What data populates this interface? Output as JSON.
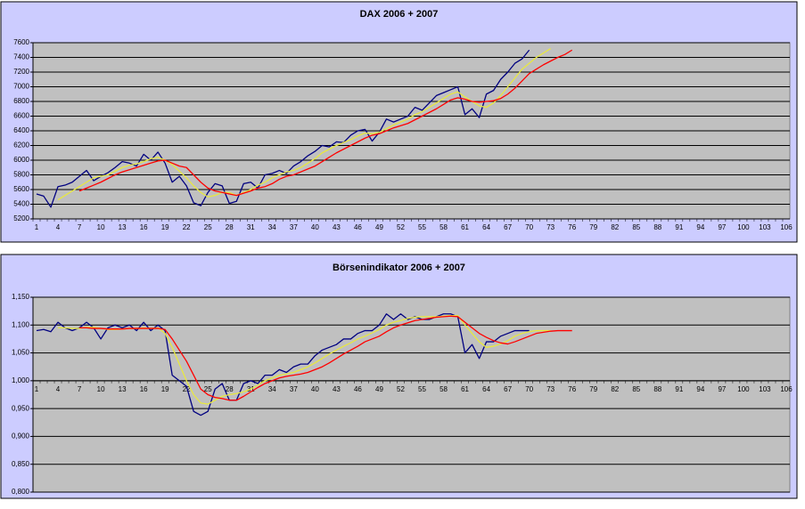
{
  "chart_data": [
    {
      "type": "line",
      "title": "DAX 2006 + 2007",
      "categories": [
        1,
        null,
        null,
        4,
        null,
        null,
        7,
        null,
        null,
        10,
        null,
        null,
        13,
        null,
        null,
        16,
        null,
        null,
        19,
        null,
        null,
        22,
        null,
        null,
        25,
        null,
        null,
        28,
        null,
        null,
        31,
        null,
        null,
        34,
        null,
        null,
        37,
        null,
        null,
        40,
        null,
        null,
        43,
        null,
        null,
        46,
        null,
        null,
        49,
        null,
        null,
        52,
        null,
        null,
        55,
        null,
        null,
        58,
        null,
        null,
        61,
        null,
        null,
        64,
        null,
        null,
        67,
        null,
        null,
        70,
        null,
        null,
        73,
        null,
        null,
        76,
        null,
        null,
        79,
        null,
        null,
        82,
        null,
        null,
        85,
        null,
        null,
        88,
        null,
        null,
        91,
        null,
        null,
        94,
        null,
        null,
        97,
        null,
        null,
        100,
        null,
        null,
        103,
        null,
        null,
        106
      ],
      "ylim": [
        5200,
        7600
      ],
      "yticks": [
        5200,
        5400,
        5600,
        5800,
        6000,
        6200,
        6400,
        6600,
        6800,
        7000,
        7200,
        7400,
        7600
      ],
      "grid": true,
      "series": [
        {
          "color": "#000080",
          "values": [
            5540,
            5510,
            5360,
            5640,
            5660,
            5700,
            5780,
            5860,
            5720,
            5780,
            5830,
            5900,
            5980,
            5960,
            5920,
            6080,
            6000,
            6110,
            5960,
            5700,
            5780,
            5650,
            5420,
            5380,
            5560,
            5680,
            5650,
            5410,
            5440,
            5680,
            5700,
            5620,
            5800,
            5820,
            5860,
            5820,
            5920,
            5980,
            6060,
            6120,
            6200,
            6180,
            6250,
            6240,
            6340,
            6400,
            6420,
            6260,
            6380,
            6560,
            6520,
            6560,
            6600,
            6720,
            6680,
            6780,
            6880,
            6920,
            6960,
            7000,
            6620,
            6700,
            6580,
            6900,
            6950,
            7100,
            7200,
            7320,
            7380,
            7500,
            null,
            null,
            null,
            null,
            null,
            null,
            null,
            null,
            null,
            null,
            null,
            null,
            null,
            null,
            null,
            null,
            null,
            null,
            null,
            null,
            null,
            null,
            null,
            null,
            null,
            null,
            null,
            null,
            null,
            null,
            null,
            null,
            null,
            null,
            null,
            null
          ]
        },
        {
          "color": "#e8e840",
          "values": [
            null,
            null,
            null,
            5460,
            5520,
            5580,
            5640,
            5700,
            5760,
            5780,
            5800,
            5850,
            5900,
            5930,
            5950,
            5980,
            6020,
            6040,
            6000,
            5940,
            5850,
            5760,
            5650,
            5560,
            5500,
            5520,
            5560,
            5560,
            5520,
            5560,
            5600,
            5660,
            5700,
            5760,
            5800,
            5840,
            5860,
            5900,
            5960,
            6020,
            6100,
            6150,
            6200,
            6240,
            6280,
            6330,
            6370,
            6360,
            6380,
            6430,
            6480,
            6520,
            6560,
            6620,
            6660,
            6720,
            6780,
            6840,
            6900,
            6930,
            6860,
            6800,
            6740,
            6720,
            6780,
            6880,
            7000,
            7120,
            7240,
            7320,
            7400,
            7460,
            7520,
            null,
            null,
            null,
            null,
            null,
            null,
            null,
            null,
            null,
            null,
            null,
            null,
            null,
            null,
            null,
            null,
            null,
            null,
            null,
            null,
            null,
            null,
            null,
            null,
            null,
            null,
            null,
            null,
            null,
            null,
            null,
            null,
            null
          ]
        },
        {
          "color": "#ff0000",
          "values": [
            null,
            null,
            null,
            null,
            null,
            null,
            5580,
            5620,
            5660,
            5700,
            5750,
            5800,
            5840,
            5870,
            5900,
            5930,
            5960,
            5990,
            6000,
            5960,
            5920,
            5900,
            5800,
            5700,
            5620,
            5580,
            5560,
            5540,
            5520,
            5550,
            5580,
            5620,
            5640,
            5680,
            5740,
            5780,
            5800,
            5840,
            5880,
            5920,
            5980,
            6040,
            6100,
            6150,
            6200,
            6250,
            6300,
            6340,
            6360,
            6400,
            6440,
            6470,
            6500,
            6550,
            6600,
            6650,
            6700,
            6760,
            6820,
            6850,
            6830,
            6800,
            6790,
            6800,
            6810,
            6840,
            6900,
            6980,
            7080,
            7180,
            7240,
            7300,
            7350,
            7400,
            7440,
            7500,
            null,
            null,
            null,
            null,
            null,
            null,
            null,
            null,
            null,
            null,
            null,
            null,
            null,
            null,
            null,
            null,
            null,
            null,
            null,
            null,
            null,
            null,
            null,
            null,
            null,
            null,
            null,
            null,
            null,
            null
          ]
        }
      ]
    },
    {
      "type": "line",
      "title": "Börsenindikator 2006 + 2007",
      "categories": [
        1,
        null,
        null,
        4,
        null,
        null,
        7,
        null,
        null,
        10,
        null,
        null,
        13,
        null,
        null,
        16,
        null,
        null,
        19,
        null,
        null,
        22,
        null,
        null,
        25,
        null,
        null,
        28,
        null,
        null,
        31,
        null,
        null,
        34,
        null,
        null,
        37,
        null,
        null,
        40,
        null,
        null,
        43,
        null,
        null,
        46,
        null,
        null,
        49,
        null,
        null,
        52,
        null,
        null,
        55,
        null,
        null,
        58,
        null,
        null,
        61,
        null,
        null,
        64,
        null,
        null,
        67,
        null,
        null,
        70,
        null,
        null,
        73,
        null,
        null,
        76,
        null,
        null,
        79,
        null,
        null,
        82,
        null,
        null,
        85,
        null,
        null,
        88,
        null,
        null,
        91,
        null,
        null,
        94,
        null,
        null,
        97,
        null,
        null,
        100,
        null,
        null,
        103,
        null,
        null,
        106
      ],
      "ylim": [
        0.8,
        1.15
      ],
      "yticks": [
        {
          "value": 0.8,
          "label": "0,800"
        },
        {
          "value": 0.85,
          "label": "0,850"
        },
        {
          "value": 0.9,
          "label": "0,900"
        },
        {
          "value": 0.95,
          "label": "0,950"
        },
        {
          "value": 1.0,
          "label": "1,000"
        },
        {
          "value": 1.05,
          "label": "1,050"
        },
        {
          "value": 1.1,
          "label": "1,100"
        },
        {
          "value": 1.15,
          "label": "1,150"
        }
      ],
      "grid": true,
      "x_axis_at": 1,
      "series": [
        {
          "color": "#000080",
          "values": [
            1.09,
            1.092,
            1.088,
            1.105,
            1.095,
            1.09,
            1.095,
            1.105,
            1.095,
            1.075,
            1.095,
            1.1,
            1.095,
            1.1,
            1.09,
            1.105,
            1.09,
            1.1,
            1.09,
            1.01,
            1.0,
            0.99,
            0.945,
            0.938,
            0.945,
            0.985,
            0.995,
            0.965,
            0.965,
            0.995,
            1.0,
            0.995,
            1.01,
            1.01,
            1.02,
            1.015,
            1.025,
            1.03,
            1.03,
            1.045,
            1.055,
            1.06,
            1.065,
            1.075,
            1.075,
            1.085,
            1.09,
            1.09,
            1.1,
            1.12,
            1.11,
            1.12,
            1.11,
            1.115,
            1.11,
            1.11,
            1.115,
            1.12,
            1.12,
            1.115,
            1.05,
            1.065,
            1.04,
            1.07,
            1.07,
            1.08,
            1.085,
            1.09,
            1.09,
            1.09,
            null,
            null,
            null,
            null,
            null,
            null,
            null,
            null,
            null,
            null,
            null,
            null,
            null,
            null,
            null,
            null,
            null,
            null,
            null,
            null,
            null,
            null,
            null,
            null,
            null,
            null,
            null,
            null,
            null,
            null,
            null,
            null,
            null,
            null,
            null,
            null
          ]
        },
        {
          "color": "#e8e840",
          "values": [
            null,
            null,
            null,
            1.095,
            1.095,
            1.094,
            1.094,
            1.096,
            1.096,
            1.094,
            1.092,
            1.092,
            1.093,
            1.094,
            1.094,
            1.095,
            1.094,
            1.095,
            1.085,
            1.06,
            1.03,
            1.0,
            0.975,
            0.96,
            0.958,
            0.965,
            0.972,
            0.975,
            0.977,
            0.98,
            0.985,
            0.992,
            1.0,
            1.005,
            1.01,
            1.012,
            1.015,
            1.02,
            1.025,
            1.032,
            1.04,
            1.048,
            1.055,
            1.062,
            1.068,
            1.075,
            1.08,
            1.086,
            1.092,
            1.1,
            1.105,
            1.108,
            1.112,
            1.114,
            1.115,
            1.115,
            1.115,
            1.116,
            1.117,
            1.117,
            1.1,
            1.085,
            1.07,
            1.06,
            1.062,
            1.066,
            1.072,
            1.08,
            1.085,
            1.088,
            1.09,
            1.09,
            1.09,
            null,
            null,
            null,
            null,
            null,
            null,
            null,
            null,
            null,
            null,
            null,
            null,
            null,
            null,
            null,
            null,
            null,
            null,
            null,
            null,
            null,
            null,
            null,
            null,
            null,
            null,
            null,
            null,
            null,
            null,
            null,
            null,
            null
          ]
        },
        {
          "color": "#ff0000",
          "values": [
            null,
            null,
            null,
            null,
            null,
            null,
            1.095,
            1.095,
            1.094,
            1.094,
            1.093,
            1.093,
            1.093,
            1.094,
            1.094,
            1.094,
            1.094,
            1.094,
            1.092,
            1.075,
            1.055,
            1.035,
            1.01,
            0.985,
            0.975,
            0.97,
            0.968,
            0.965,
            0.965,
            0.972,
            0.98,
            0.988,
            0.995,
            1.0,
            1.005,
            1.008,
            1.01,
            1.012,
            1.015,
            1.02,
            1.025,
            1.032,
            1.04,
            1.048,
            1.055,
            1.062,
            1.07,
            1.075,
            1.08,
            1.088,
            1.095,
            1.1,
            1.104,
            1.108,
            1.11,
            1.112,
            1.114,
            1.115,
            1.116,
            1.115,
            1.105,
            1.095,
            1.085,
            1.078,
            1.072,
            1.068,
            1.066,
            1.07,
            1.075,
            1.08,
            1.085,
            1.087,
            1.089,
            1.09,
            1.09,
            1.09,
            null,
            null,
            null,
            null,
            null,
            null,
            null,
            null,
            null,
            null,
            null,
            null,
            null,
            null,
            null,
            null,
            null,
            null,
            null,
            null,
            null,
            null,
            null,
            null,
            null,
            null,
            null,
            null,
            null,
            null
          ]
        }
      ]
    }
  ]
}
